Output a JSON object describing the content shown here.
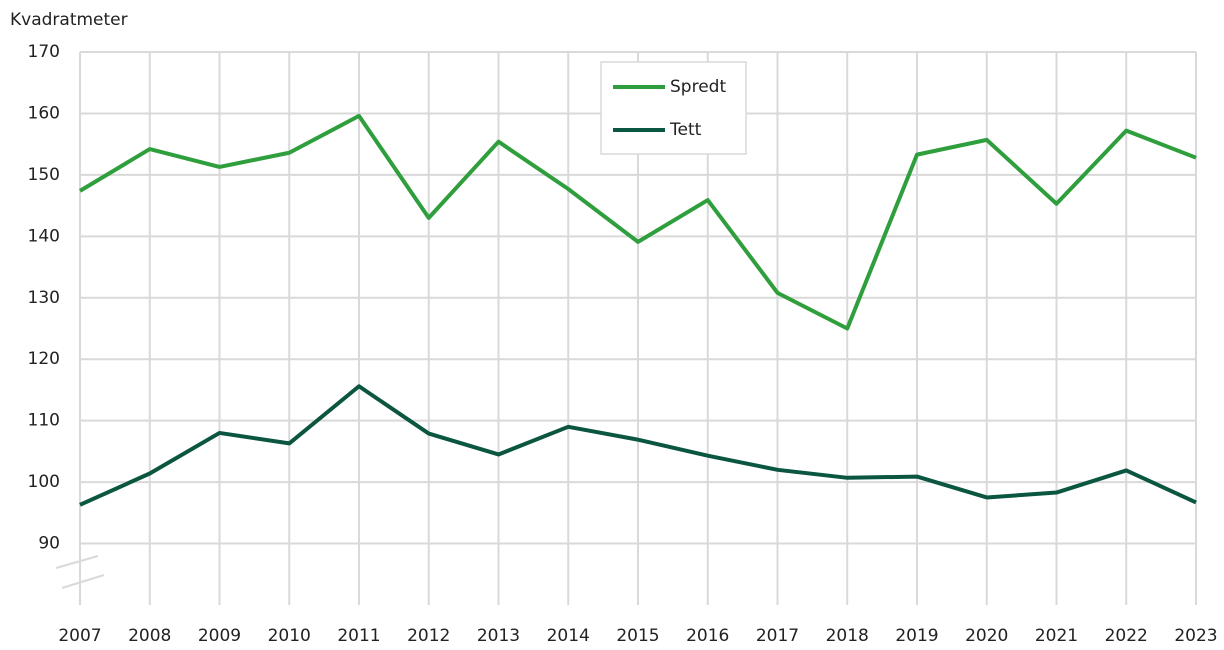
{
  "chart_data": {
    "type": "line",
    "y_label": "Kvadratmeter",
    "x": [
      2007,
      2008,
      2009,
      2010,
      2011,
      2012,
      2013,
      2014,
      2015,
      2016,
      2017,
      2018,
      2019,
      2020,
      2021,
      2022,
      2023
    ],
    "xlim": [
      2007,
      2023
    ],
    "xticks": [
      2007,
      2008,
      2009,
      2010,
      2011,
      2012,
      2013,
      2014,
      2015,
      2016,
      2017,
      2018,
      2019,
      2020,
      2021,
      2022,
      2023
    ],
    "ylim": [
      80,
      170
    ],
    "yticks": [
      90,
      100,
      110,
      120,
      130,
      140,
      150,
      160,
      170
    ],
    "grid": true,
    "legend": "top",
    "series": [
      {
        "name": "Spredt",
        "color": "#2f9e3c",
        "values": [
          147.4,
          154.2,
          151.3,
          153.6,
          159.6,
          143.0,
          155.4,
          147.7,
          139.1,
          145.9,
          130.8,
          125.0,
          153.3,
          155.7,
          145.3,
          157.2,
          152.8
        ]
      },
      {
        "name": "Tett",
        "color": "#0b5640",
        "values": [
          96.3,
          101.4,
          108.0,
          106.3,
          115.6,
          107.9,
          104.5,
          109.0,
          106.9,
          104.3,
          102.0,
          100.7,
          100.9,
          97.5,
          98.3,
          101.9,
          96.7
        ]
      }
    ]
  }
}
